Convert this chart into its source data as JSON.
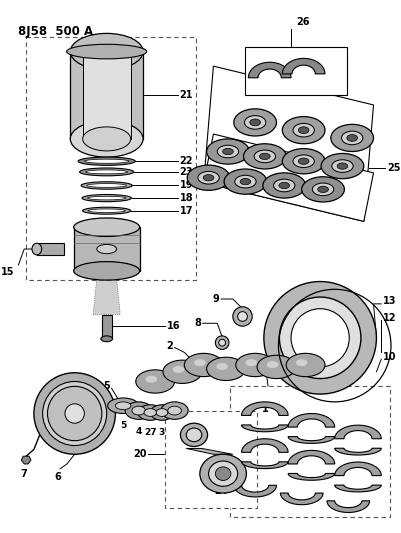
{
  "title": "8J58  500 A",
  "bg_color": "#ffffff",
  "lc": "#000000",
  "gray1": "#888888",
  "gray2": "#aaaaaa",
  "gray3": "#cccccc",
  "gray4": "#555555",
  "fig_width": 4.01,
  "fig_height": 5.33,
  "dpi": 100
}
